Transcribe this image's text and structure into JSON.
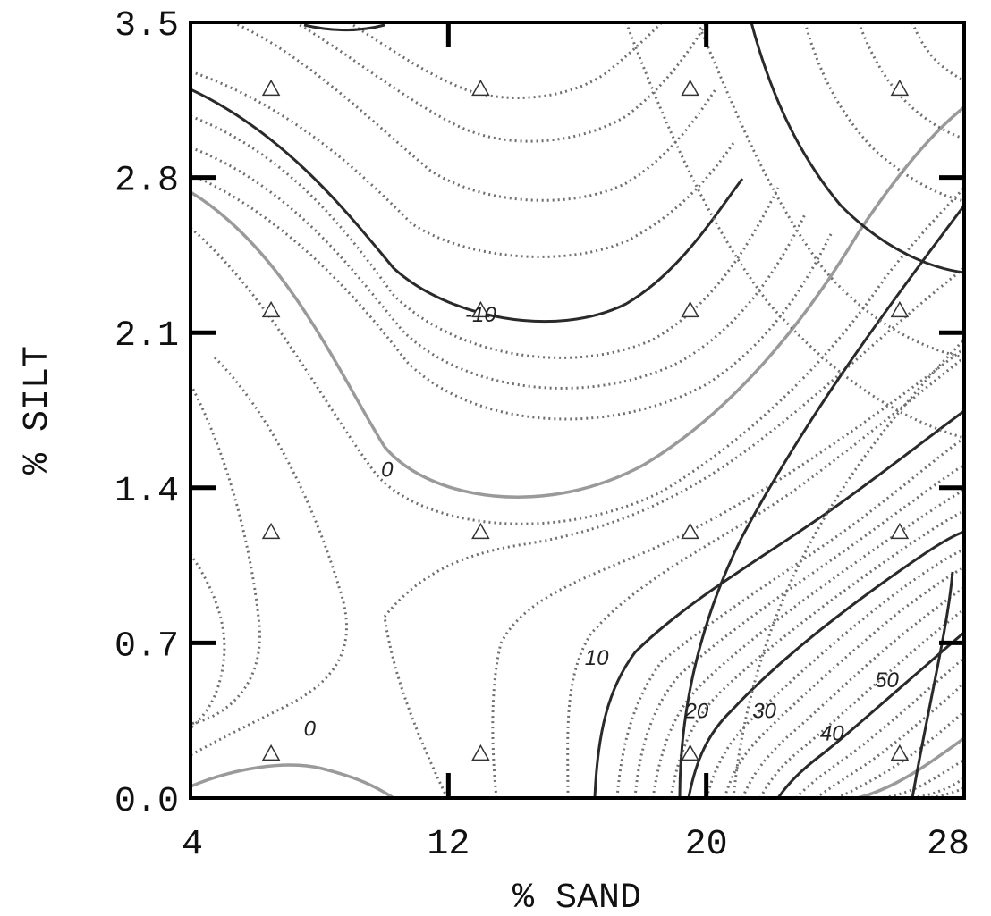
{
  "chart_data": {
    "type": "contour",
    "xlabel": "% SAND",
    "ylabel": "% SILT",
    "xlim": [
      4,
      28
    ],
    "ylim": [
      0.0,
      3.5
    ],
    "x_ticks": [
      4,
      12,
      20,
      28
    ],
    "x_tick_labels": [
      "4",
      "12",
      "20",
      "28"
    ],
    "y_ticks": [
      0.0,
      0.7,
      1.4,
      2.1,
      2.8,
      3.5
    ],
    "y_tick_labels": [
      "0.0",
      "0.7",
      "1.4",
      "2.1",
      "2.8",
      "3.5"
    ],
    "grid": false,
    "legend": "none",
    "design_points": [
      {
        "x": 6.5,
        "y": 3.2
      },
      {
        "x": 13,
        "y": 3.2
      },
      {
        "x": 19.5,
        "y": 3.2
      },
      {
        "x": 26,
        "y": 3.2
      },
      {
        "x": 6.5,
        "y": 2.2
      },
      {
        "x": 13,
        "y": 2.2
      },
      {
        "x": 19.5,
        "y": 2.2
      },
      {
        "x": 26,
        "y": 2.2
      },
      {
        "x": 6.5,
        "y": 1.2
      },
      {
        "x": 13,
        "y": 1.2
      },
      {
        "x": 19.5,
        "y": 1.2
      },
      {
        "x": 26,
        "y": 1.2
      },
      {
        "x": 6.5,
        "y": 0.2
      },
      {
        "x": 13,
        "y": 0.2
      },
      {
        "x": 19.5,
        "y": 0.2
      },
      {
        "x": 26,
        "y": 0.2
      }
    ],
    "contour_labels": [
      {
        "text": "-10",
        "x": 13,
        "y": 2.15
      },
      {
        "text": "0",
        "x": 10.1,
        "y": 1.45
      },
      {
        "text": "0",
        "x": 7.7,
        "y": 0.28
      },
      {
        "text": "10",
        "x": 16.6,
        "y": 0.6
      },
      {
        "text": "20",
        "x": 19.7,
        "y": 0.36
      },
      {
        "text": "30",
        "x": 21.8,
        "y": 0.36
      },
      {
        "text": "40",
        "x": 23.9,
        "y": 0.26
      },
      {
        "text": "50",
        "x": 25.6,
        "y": 0.5
      }
    ],
    "colors": {
      "solid": "#2a2a2a",
      "dotted": "#6f6f6f",
      "light": "#9a9a9a"
    }
  }
}
